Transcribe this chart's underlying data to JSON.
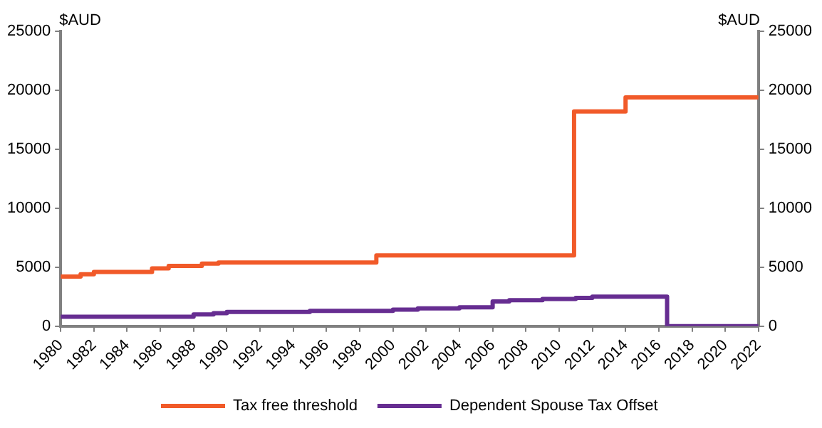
{
  "chart_data": {
    "type": "step",
    "ylabel": "$AUD",
    "y2label": "$AUD",
    "series": [
      {
        "name": "Tax free threshold",
        "color": "#f15a29",
        "x": [
          1980,
          1981.2,
          1982,
          1985.5,
          1986.5,
          1988.5,
          1989.5,
          1999,
          2010.9,
          2014,
          2022
        ],
        "values": [
          4200,
          4400,
          4600,
          4900,
          5100,
          5300,
          5400,
          6000,
          18200,
          19400,
          19400
        ]
      },
      {
        "name": "Dependent Spouse Tax Offset",
        "color": "#662d91",
        "x": [
          1980,
          1988,
          1989.2,
          1990,
          1995,
          2000,
          2001.5,
          2004,
          2006,
          2007,
          2009,
          2011,
          2012,
          2016.5,
          2022
        ],
        "values": [
          800,
          1000,
          1100,
          1200,
          1300,
          1400,
          1500,
          1600,
          2100,
          2200,
          2300,
          2400,
          2500,
          0,
          0
        ]
      }
    ],
    "xlim": [
      1980,
      2022
    ],
    "xticks": [
      1980,
      1982,
      1984,
      1986,
      1988,
      1990,
      1992,
      1994,
      1996,
      1998,
      2000,
      2002,
      2004,
      2006,
      2008,
      2010,
      2012,
      2014,
      2016,
      2018,
      2020,
      2022
    ],
    "ylim": [
      0,
      25000
    ],
    "yticks": [
      0,
      5000,
      10000,
      15000,
      20000,
      25000
    ],
    "y2lim": [
      0,
      25000
    ],
    "y2ticks": [
      0,
      5000,
      10000,
      15000,
      20000,
      25000
    ],
    "grid": false,
    "legend": "bottom",
    "line_style": "solid",
    "marker": "none"
  }
}
